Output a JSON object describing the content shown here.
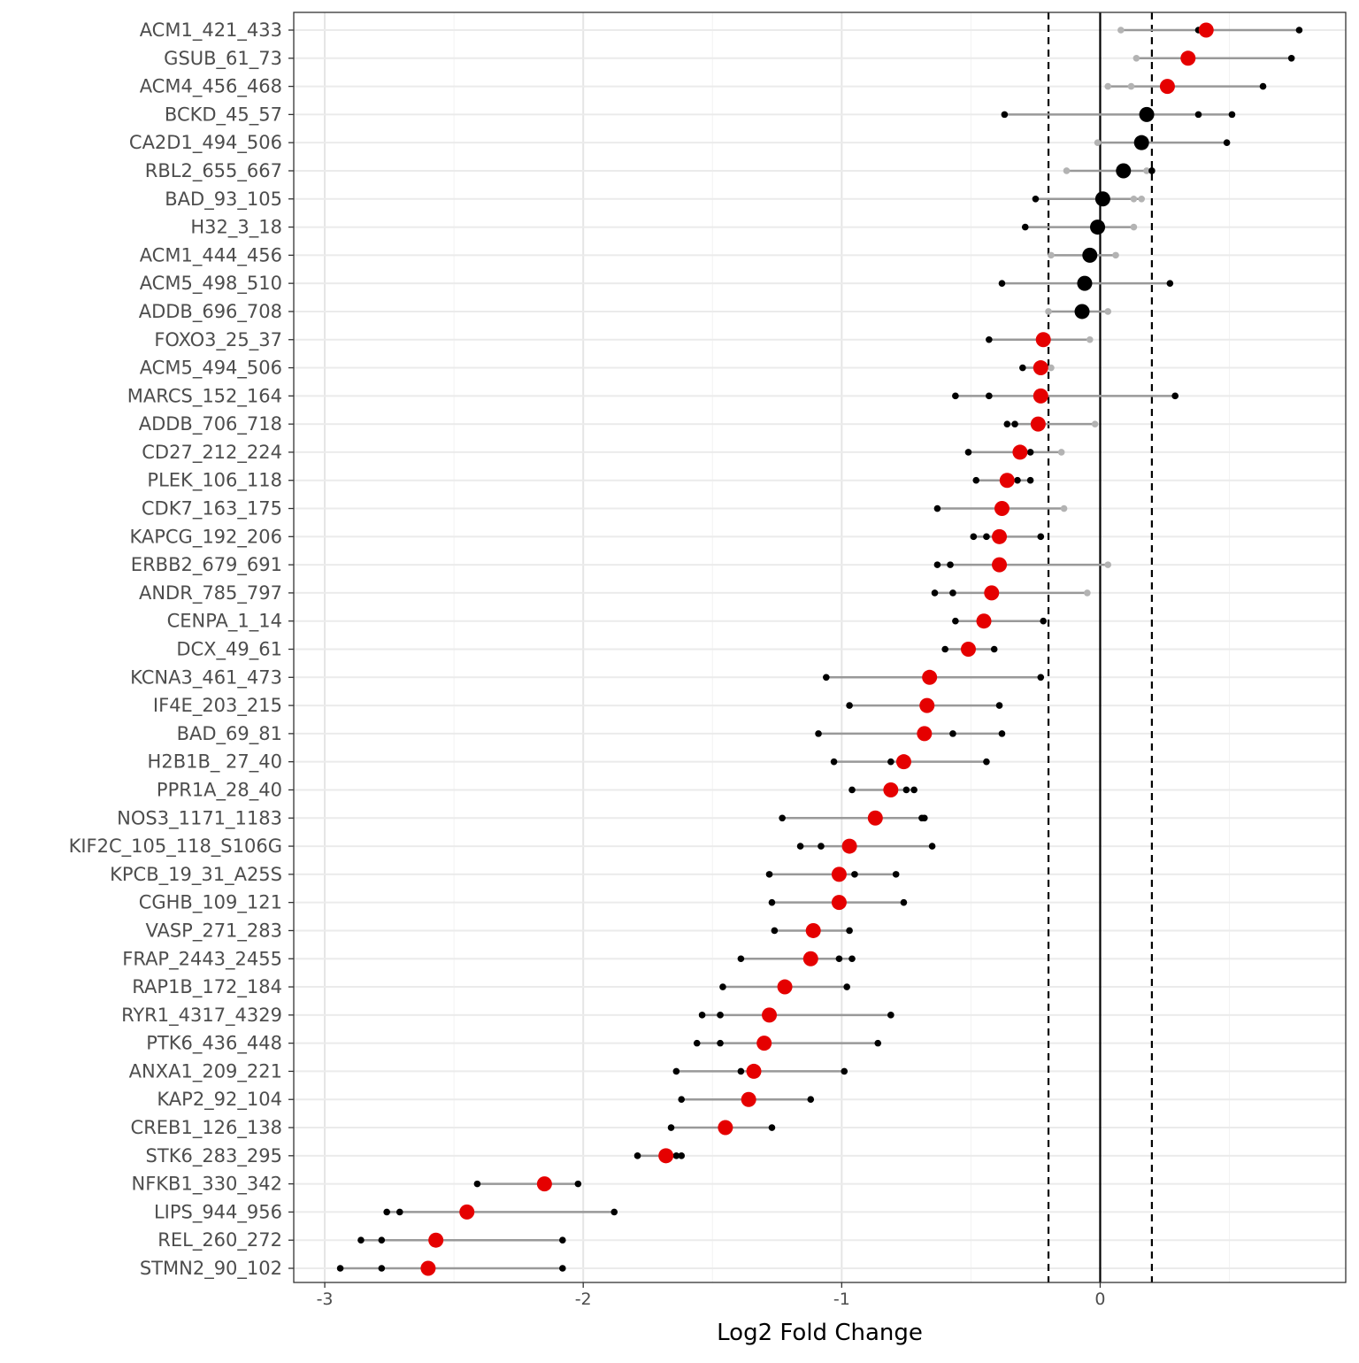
{
  "chart_data": {
    "type": "scatter",
    "title": "",
    "xlabel": "Log2 Fold Change",
    "ylabel": "",
    "xlim": [
      -3.12,
      0.95
    ],
    "x_ticks": [
      -3,
      -2,
      -1,
      0
    ],
    "x_tick_labels": [
      "-3",
      "-2",
      "-1",
      "0"
    ],
    "reference_lines": {
      "solid": 0,
      "dashed": [
        -0.2,
        0.2
      ]
    },
    "grid": true,
    "legend": "none",
    "colors": {
      "significant": "#e50000",
      "not_significant": "#000000",
      "range_line": "#999999",
      "replicate": "#000000",
      "replicate_faded": "#b3b3b3"
    },
    "peptides": [
      {
        "label": "ACM1_421_433",
        "mean": 0.41,
        "significant": true,
        "replicates": [
          0.08,
          0.38,
          0.77
        ],
        "faded": [
          true,
          false,
          false
        ]
      },
      {
        "label": "GSUB_61_73",
        "mean": 0.34,
        "significant": true,
        "replicates": [
          0.14,
          0.74
        ],
        "faded": [
          true,
          false
        ]
      },
      {
        "label": "ACM4_456_468",
        "mean": 0.26,
        "significant": true,
        "replicates": [
          0.03,
          0.12,
          0.63
        ],
        "faded": [
          true,
          true,
          false
        ]
      },
      {
        "label": "BCKD_45_57",
        "mean": 0.18,
        "significant": false,
        "replicates": [
          -0.37,
          0.38,
          0.51
        ],
        "faded": [
          false,
          false,
          false
        ]
      },
      {
        "label": "CA2D1_494_506",
        "mean": 0.16,
        "significant": false,
        "replicates": [
          -0.01,
          0.49
        ],
        "faded": [
          true,
          false
        ]
      },
      {
        "label": "RBL2_655_667",
        "mean": 0.09,
        "significant": false,
        "replicates": [
          -0.13,
          0.18,
          0.2
        ],
        "faded": [
          true,
          true,
          false
        ]
      },
      {
        "label": "BAD_93_105",
        "mean": 0.01,
        "significant": false,
        "replicates": [
          -0.25,
          0.13,
          0.16
        ],
        "faded": [
          false,
          true,
          true
        ]
      },
      {
        "label": "H32_3_18",
        "mean": -0.01,
        "significant": false,
        "replicates": [
          -0.29,
          0.13
        ],
        "faded": [
          false,
          true
        ]
      },
      {
        "label": "ACM1_444_456",
        "mean": -0.04,
        "significant": false,
        "replicates": [
          -0.19,
          0.06
        ],
        "faded": [
          true,
          true
        ]
      },
      {
        "label": "ACM5_498_510",
        "mean": -0.06,
        "significant": false,
        "replicates": [
          -0.38,
          0.27
        ],
        "faded": [
          false,
          false
        ]
      },
      {
        "label": "ADDB_696_708",
        "mean": -0.07,
        "significant": false,
        "replicates": [
          -0.2,
          0.03
        ],
        "faded": [
          true,
          true
        ]
      },
      {
        "label": "FOXO3_25_37",
        "mean": -0.22,
        "significant": true,
        "replicates": [
          -0.43,
          -0.04
        ],
        "faded": [
          false,
          true
        ]
      },
      {
        "label": "ACM5_494_506",
        "mean": -0.23,
        "significant": true,
        "replicates": [
          -0.3,
          -0.19
        ],
        "faded": [
          false,
          true
        ]
      },
      {
        "label": "MARCS_152_164",
        "mean": -0.23,
        "significant": true,
        "replicates": [
          -0.56,
          -0.43,
          0.29
        ],
        "faded": [
          false,
          false,
          false
        ]
      },
      {
        "label": "ADDB_706_718",
        "mean": -0.24,
        "significant": true,
        "replicates": [
          -0.36,
          -0.33,
          -0.02
        ],
        "faded": [
          false,
          false,
          true
        ]
      },
      {
        "label": "CD27_212_224",
        "mean": -0.31,
        "significant": true,
        "replicates": [
          -0.51,
          -0.27,
          -0.15
        ],
        "faded": [
          false,
          false,
          true
        ]
      },
      {
        "label": "PLEK_106_118",
        "mean": -0.36,
        "significant": true,
        "replicates": [
          -0.48,
          -0.32,
          -0.27
        ],
        "faded": [
          false,
          false,
          false
        ]
      },
      {
        "label": "CDK7_163_175",
        "mean": -0.38,
        "significant": true,
        "replicates": [
          -0.63,
          -0.14
        ],
        "faded": [
          false,
          true
        ]
      },
      {
        "label": "KAPCG_192_206",
        "mean": -0.39,
        "significant": true,
        "replicates": [
          -0.49,
          -0.44,
          -0.23
        ],
        "faded": [
          false,
          false,
          false
        ]
      },
      {
        "label": "ERBB2_679_691",
        "mean": -0.39,
        "significant": true,
        "replicates": [
          -0.63,
          -0.58,
          0.03
        ],
        "faded": [
          false,
          false,
          true
        ]
      },
      {
        "label": "ANDR_785_797",
        "mean": -0.42,
        "significant": true,
        "replicates": [
          -0.64,
          -0.57,
          -0.05
        ],
        "faded": [
          false,
          false,
          true
        ]
      },
      {
        "label": "CENPA_1_14",
        "mean": -0.45,
        "significant": true,
        "replicates": [
          -0.56,
          -0.22
        ],
        "faded": [
          false,
          false
        ]
      },
      {
        "label": "DCX_49_61",
        "mean": -0.51,
        "significant": true,
        "replicates": [
          -0.6,
          -0.41
        ],
        "faded": [
          false,
          false
        ]
      },
      {
        "label": "KCNA3_461_473",
        "mean": -0.66,
        "significant": true,
        "replicates": [
          -1.06,
          -0.23
        ],
        "faded": [
          false,
          false
        ]
      },
      {
        "label": "IF4E_203_215",
        "mean": -0.67,
        "significant": true,
        "replicates": [
          -0.97,
          -0.39
        ],
        "faded": [
          false,
          false
        ]
      },
      {
        "label": "BAD_69_81",
        "mean": -0.68,
        "significant": true,
        "replicates": [
          -1.09,
          -0.57,
          -0.38
        ],
        "faded": [
          false,
          false,
          false
        ]
      },
      {
        "label": "H2B1B_ 27_40",
        "mean": -0.76,
        "significant": true,
        "replicates": [
          -1.03,
          -0.81,
          -0.44
        ],
        "faded": [
          false,
          false,
          false
        ]
      },
      {
        "label": "PPR1A_28_40",
        "mean": -0.81,
        "significant": true,
        "replicates": [
          -0.96,
          -0.75,
          -0.72
        ],
        "faded": [
          false,
          false,
          false
        ]
      },
      {
        "label": "NOS3_1171_1183",
        "mean": -0.87,
        "significant": true,
        "replicates": [
          -1.23,
          -0.69,
          -0.68
        ],
        "faded": [
          false,
          false,
          false
        ]
      },
      {
        "label": "KIF2C_105_118_S106G",
        "mean": -0.97,
        "significant": true,
        "replicates": [
          -1.16,
          -1.08,
          -0.65
        ],
        "faded": [
          false,
          false,
          false
        ]
      },
      {
        "label": "KPCB_19_31_A25S",
        "mean": -1.01,
        "significant": true,
        "replicates": [
          -1.28,
          -0.95,
          -0.79
        ],
        "faded": [
          false,
          false,
          false
        ]
      },
      {
        "label": "CGHB_109_121",
        "mean": -1.01,
        "significant": true,
        "replicates": [
          -1.27,
          -0.76
        ],
        "faded": [
          false,
          false
        ]
      },
      {
        "label": "VASP_271_283",
        "mean": -1.11,
        "significant": true,
        "replicates": [
          -1.26,
          -0.97
        ],
        "faded": [
          false,
          false
        ]
      },
      {
        "label": "FRAP_2443_2455",
        "mean": -1.12,
        "significant": true,
        "replicates": [
          -1.39,
          -1.01,
          -0.96
        ],
        "faded": [
          false,
          false,
          false
        ]
      },
      {
        "label": "RAP1B_172_184",
        "mean": -1.22,
        "significant": true,
        "replicates": [
          -1.46,
          -0.98
        ],
        "faded": [
          false,
          false
        ]
      },
      {
        "label": "RYR1_4317_4329",
        "mean": -1.28,
        "significant": true,
        "replicates": [
          -1.54,
          -1.47,
          -0.81
        ],
        "faded": [
          false,
          false,
          false
        ]
      },
      {
        "label": "PTK6_436_448",
        "mean": -1.3,
        "significant": true,
        "replicates": [
          -1.56,
          -1.47,
          -0.86
        ],
        "faded": [
          false,
          false,
          false
        ]
      },
      {
        "label": "ANXA1_209_221",
        "mean": -1.34,
        "significant": true,
        "replicates": [
          -1.64,
          -1.39,
          -0.99
        ],
        "faded": [
          false,
          false,
          false
        ]
      },
      {
        "label": "KAP2_92_104",
        "mean": -1.36,
        "significant": true,
        "replicates": [
          -1.62,
          -1.12
        ],
        "faded": [
          false,
          false
        ]
      },
      {
        "label": "CREB1_126_138",
        "mean": -1.45,
        "significant": true,
        "replicates": [
          -1.66,
          -1.44,
          -1.27
        ],
        "faded": [
          false,
          false,
          false
        ]
      },
      {
        "label": "STK6_283_295",
        "mean": -1.68,
        "significant": true,
        "replicates": [
          -1.79,
          -1.64,
          -1.62
        ],
        "faded": [
          false,
          false,
          false
        ]
      },
      {
        "label": "NFKB1_330_342",
        "mean": -2.15,
        "significant": true,
        "replicates": [
          -2.41,
          -2.02
        ],
        "faded": [
          false,
          false
        ]
      },
      {
        "label": "LIPS_944_956",
        "mean": -2.45,
        "significant": true,
        "replicates": [
          -2.76,
          -2.71,
          -1.88
        ],
        "faded": [
          false,
          false,
          false
        ]
      },
      {
        "label": "REL_260_272",
        "mean": -2.57,
        "significant": true,
        "replicates": [
          -2.86,
          -2.78,
          -2.08
        ],
        "faded": [
          false,
          false,
          false
        ]
      },
      {
        "label": "STMN2_90_102",
        "mean": -2.6,
        "significant": true,
        "replicates": [
          -2.94,
          -2.78,
          -2.08
        ],
        "faded": [
          false,
          false,
          false
        ]
      }
    ]
  }
}
